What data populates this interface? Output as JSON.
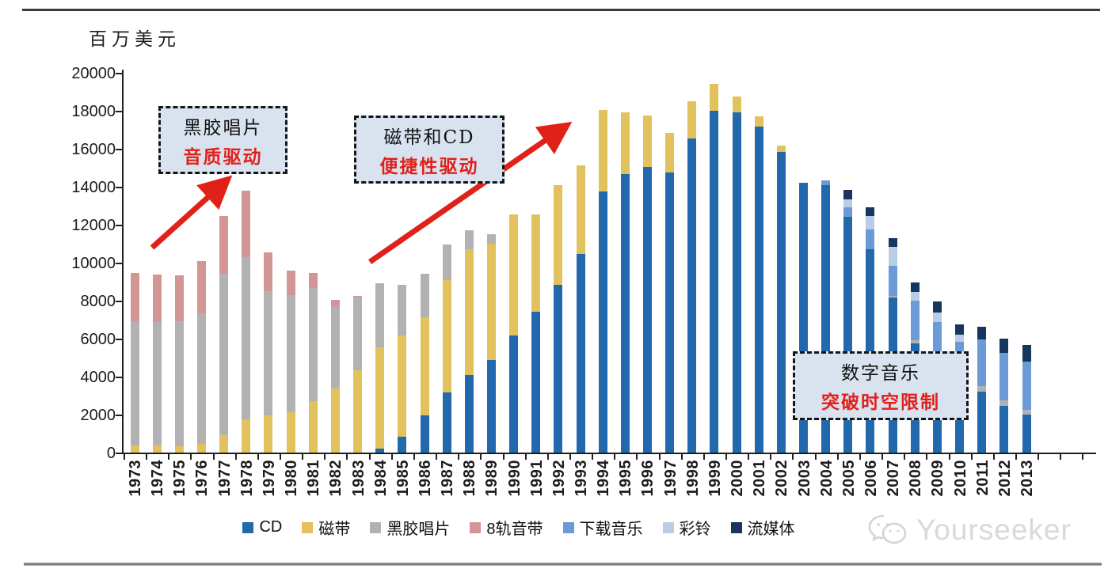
{
  "page": {
    "unit_label": "百万美元",
    "watermark": "Yourseeker"
  },
  "annotations": [
    {
      "line1": "黑胶唱片",
      "line2": "音质驱动"
    },
    {
      "line1": "磁带和CD",
      "line2": "便捷性驱动"
    },
    {
      "line1": "数字音乐",
      "line2": "突破时空限制"
    }
  ],
  "colors": {
    "accent_red": "#e0211a",
    "callout_bg": "#d9e3f0",
    "axis": "#1f1f1f"
  },
  "chart_data": {
    "type": "bar",
    "stacked": true,
    "ylabel": "百万美元",
    "ylim": [
      0,
      20000
    ],
    "ytick_step": 2000,
    "grid": false,
    "legend_position": "bottom",
    "categories": [
      1973,
      1974,
      1975,
      1976,
      1977,
      1978,
      1979,
      1980,
      1981,
      1982,
      1983,
      1984,
      1985,
      1986,
      1987,
      1988,
      1989,
      1990,
      1991,
      1992,
      1993,
      1994,
      1995,
      1996,
      1997,
      1998,
      1999,
      2000,
      2001,
      2002,
      2003,
      2004,
      2005,
      2006,
      2007,
      2008,
      2009,
      2010,
      2011,
      2012,
      2013
    ],
    "series": [
      {
        "name": "CD",
        "color": "#2268ac",
        "values": [
          0,
          0,
          0,
          0,
          0,
          0,
          0,
          0,
          0,
          0,
          0,
          200,
          840,
          1960,
          3150,
          4080,
          4870,
          6160,
          7420,
          8840,
          10450,
          13750,
          14650,
          15050,
          14730,
          16530,
          17990,
          17925,
          17160,
          15815,
          14200,
          14100,
          12400,
          10700,
          8150,
          5750,
          4200,
          3400,
          3200,
          2440,
          1980
        ]
      },
      {
        "name": "磁带",
        "color": "#e2c25c",
        "values": [
          380,
          380,
          350,
          450,
          900,
          1750,
          1950,
          2120,
          2720,
          3370,
          4340,
          5360,
          5320,
          5160,
          5950,
          6630,
          6130,
          6400,
          5140,
          5250,
          4680,
          4300,
          3250,
          2700,
          2120,
          1950,
          1440,
          830,
          530,
          340,
          0,
          0,
          0,
          0,
          0,
          0,
          0,
          0,
          0,
          0,
          0
        ]
      },
      {
        "name": "黑胶唱片",
        "color": "#b2b2b2",
        "values": [
          6550,
          6500,
          6550,
          6900,
          8500,
          8550,
          6550,
          6180,
          5930,
          4290,
          3840,
          3340,
          2680,
          2280,
          1860,
          1000,
          490,
          0,
          0,
          0,
          0,
          0,
          0,
          0,
          0,
          0,
          0,
          0,
          0,
          0,
          0,
          0,
          0,
          0,
          100,
          150,
          120,
          120,
          280,
          320,
          250
        ]
      },
      {
        "name": "8轨音带",
        "color": "#d29795",
        "values": [
          2550,
          2500,
          2450,
          2750,
          3050,
          3500,
          2060,
          1300,
          830,
          380,
          60,
          0,
          0,
          0,
          0,
          0,
          0,
          0,
          0,
          0,
          0,
          0,
          0,
          0,
          0,
          0,
          0,
          0,
          0,
          0,
          0,
          0,
          0,
          0,
          0,
          0,
          0,
          0,
          0,
          0,
          0
        ]
      },
      {
        "name": "下载音乐",
        "color": "#6b9bd7",
        "values": [
          0,
          0,
          0,
          0,
          0,
          0,
          0,
          0,
          0,
          0,
          0,
          0,
          0,
          0,
          0,
          0,
          0,
          0,
          0,
          0,
          0,
          0,
          0,
          0,
          0,
          0,
          0,
          0,
          0,
          0,
          0,
          230,
          500,
          1040,
          1600,
          2100,
          2560,
          2320,
          2460,
          2500,
          2570
        ]
      },
      {
        "name": "彩铃",
        "color": "#b9cde6",
        "values": [
          0,
          0,
          0,
          0,
          0,
          0,
          0,
          0,
          0,
          0,
          0,
          0,
          0,
          0,
          0,
          0,
          0,
          0,
          0,
          0,
          0,
          0,
          0,
          0,
          0,
          0,
          0,
          0,
          0,
          0,
          0,
          0,
          450,
          700,
          980,
          480,
          490,
          350,
          0,
          0,
          0
        ]
      },
      {
        "name": "流媒体",
        "color": "#17365d",
        "values": [
          0,
          0,
          0,
          0,
          0,
          0,
          0,
          0,
          0,
          0,
          0,
          0,
          0,
          0,
          0,
          0,
          0,
          0,
          0,
          0,
          0,
          0,
          0,
          0,
          0,
          0,
          0,
          0,
          0,
          0,
          0,
          0,
          480,
          490,
          460,
          490,
          580,
          580,
          695,
          750,
          860
        ]
      }
    ]
  }
}
